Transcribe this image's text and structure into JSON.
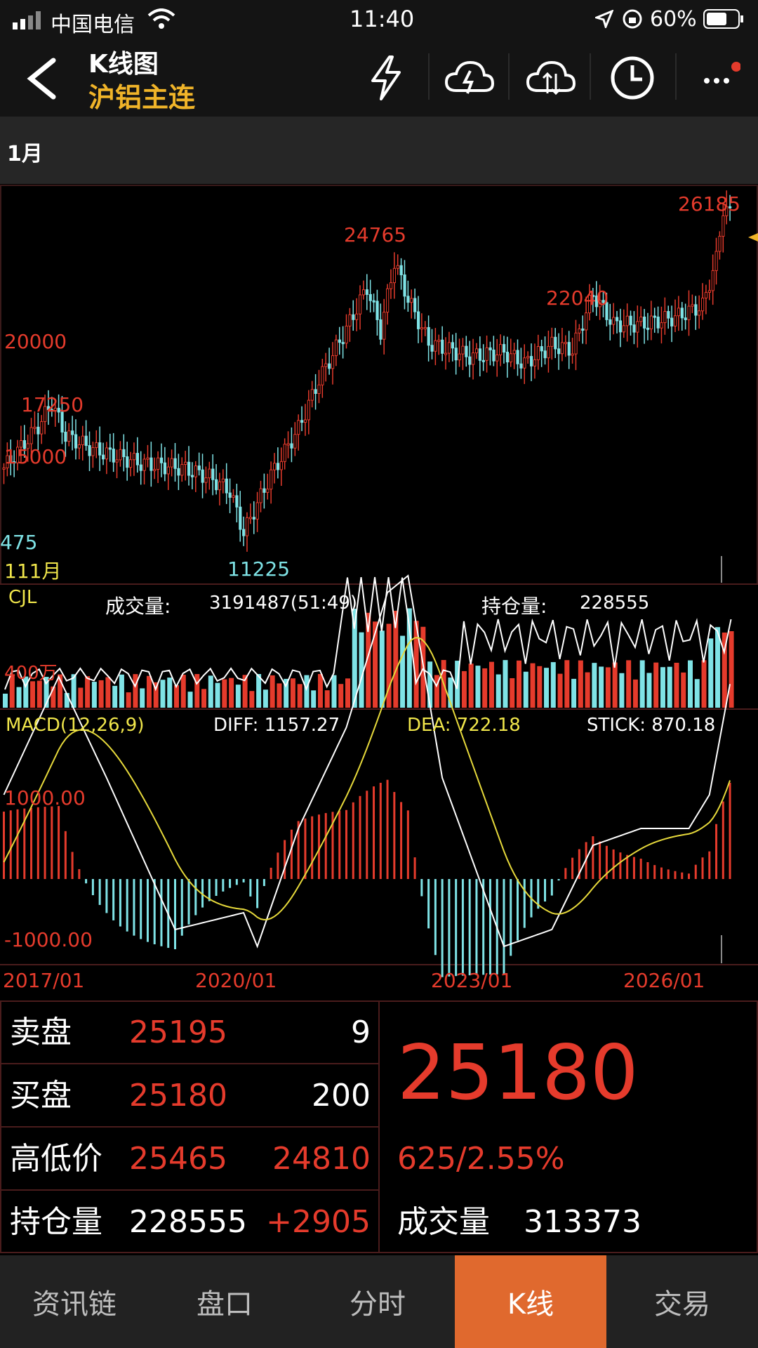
{
  "status_bar": {
    "carrier": "中国电信",
    "time": "11:40",
    "battery_pct": "60%"
  },
  "nav": {
    "title": "K线图",
    "subtitle": "沪铝主连",
    "icons": [
      "flash-icon",
      "cloud-lightning-icon",
      "cloud-sync-icon",
      "clock-icon",
      "more-icon"
    ]
  },
  "period": {
    "label": "1月"
  },
  "chart_labels": {
    "price_ticks": [
      "20000",
      "15000"
    ],
    "cut_label": "475",
    "month_label": "111月",
    "peaks": {
      "p1": "17250",
      "p2": "24765",
      "p3": "22040",
      "p4": "26185",
      "low": "11225"
    },
    "cjl": "CJL",
    "volume_label": "成交量:",
    "volume_value": "3191487(51:49)",
    "oi_label": "持仓量:",
    "oi_value": "228555",
    "vol_tick": "400万",
    "macd_label": "MACD(12,26,9)",
    "diff": "DIFF: 1157.27",
    "dea": "DEA: 722.18",
    "stick": "STICK: 870.18",
    "macd_ticks": [
      "1000.00",
      "-1000.00"
    ],
    "dates": [
      "2017/01",
      "2020/01",
      "2023/01",
      "2026/01"
    ]
  },
  "chart_data": {
    "type": "candlestick",
    "x_labels": [
      "2017/01",
      "2020/01",
      "2023/01",
      "2026/01"
    ],
    "annotated_prices": {
      "high_2017": 17250,
      "low_2020": 11225,
      "high_2022": 24765,
      "high_2024": 22040,
      "high_2026": 26185
    },
    "y_ticks": [
      20000,
      15000
    ],
    "indicators": {
      "volume_total": 3191487,
      "open_interest": 228555,
      "macd": {
        "diff": 1157.27,
        "dea": 722.18,
        "stick": 870.18,
        "ticks": [
          1000.0,
          -1000.0
        ]
      }
    }
  },
  "quote": {
    "sell_label": "卖盘",
    "sell_price": "25195",
    "sell_qty": "9",
    "buy_label": "买盘",
    "buy_price": "25180",
    "buy_qty": "200",
    "hl_label": "高低价",
    "high": "25465",
    "low": "24810",
    "oi_label": "持仓量",
    "oi": "228555",
    "oi_change": "+2905",
    "last_price": "25180",
    "change": "625/2.55%",
    "vol_label": "成交量",
    "vol": "313373"
  },
  "tabs": [
    "资讯链",
    "盘口",
    "分时",
    "K线",
    "交易"
  ],
  "active_tab": "K线",
  "colors": {
    "up": "#e53b2c",
    "down": "#7fe3e6",
    "accent": "#f0b429",
    "tab_active": "#e0692e"
  }
}
